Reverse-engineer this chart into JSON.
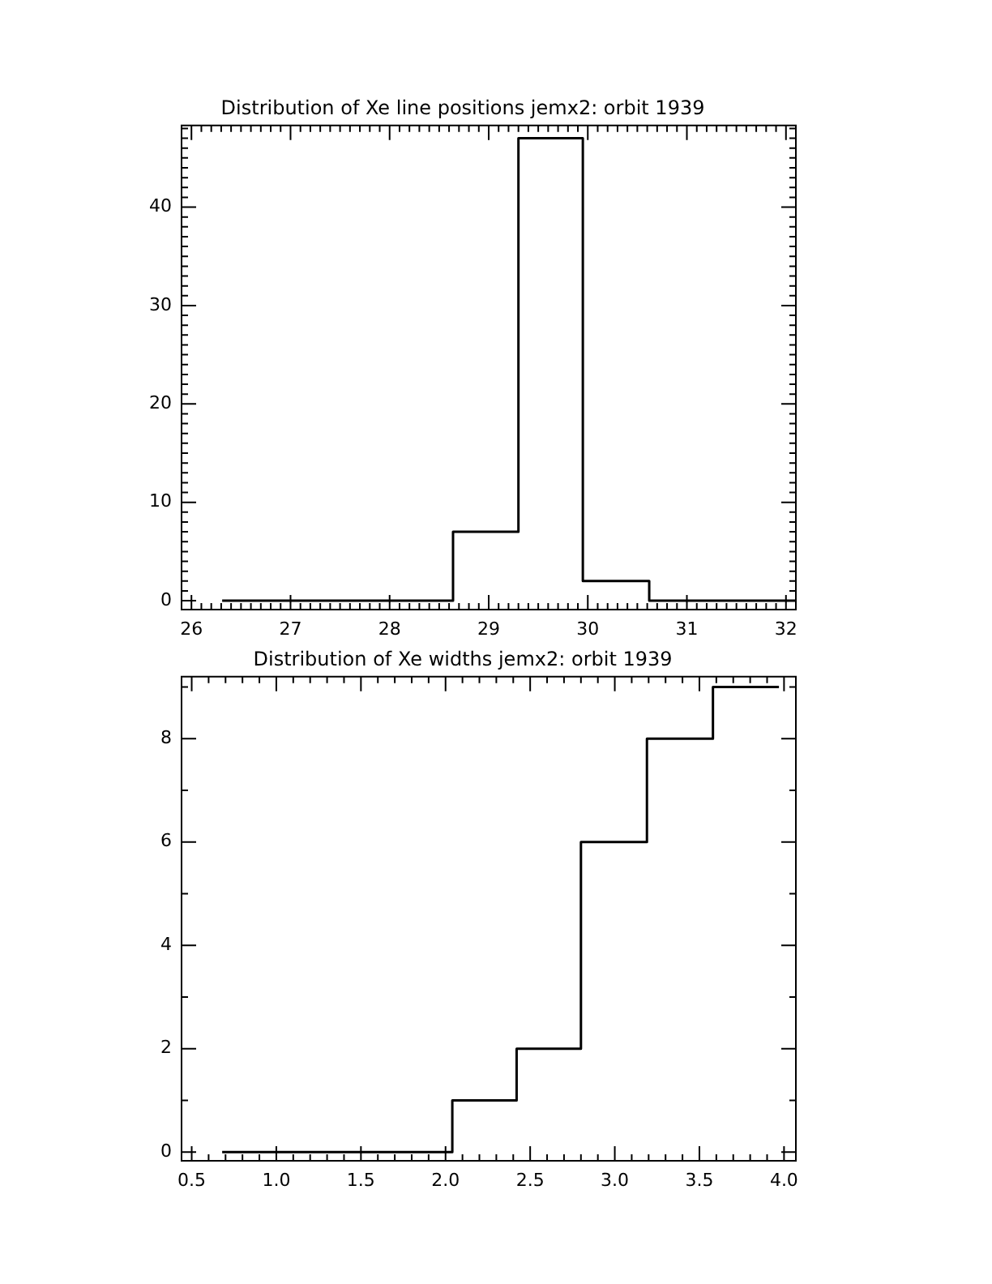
{
  "chart_data": [
    {
      "type": "histogram",
      "title": "Distribution of Xe line positions jemx2: orbit 1939",
      "grid": false,
      "color": "#000000",
      "bins": [
        26.31,
        28.64,
        29.3,
        29.95,
        30.62,
        32.1
      ],
      "values": [
        0,
        7,
        47,
        2,
        0
      ],
      "xlim": [
        25.9,
        32.1
      ],
      "ylim": [
        -0.9,
        48.3
      ],
      "xticks": [
        26,
        {
          "value": 26.1,
          "label": null
        },
        {
          "value": 26.2,
          "label": null
        },
        {
          "value": 26.3,
          "label": null
        },
        {
          "value": 26.4,
          "label": null
        },
        {
          "value": 26.5,
          "label": null
        },
        {
          "value": 26.6,
          "label": null
        },
        {
          "value": 26.7,
          "label": null
        },
        {
          "value": 26.8,
          "label": null
        },
        {
          "value": 26.9,
          "label": null
        },
        27,
        {
          "value": 27.1,
          "label": null
        },
        {
          "value": 27.2,
          "label": null
        },
        {
          "value": 27.3,
          "label": null
        },
        {
          "value": 27.4,
          "label": null
        },
        {
          "value": 27.5,
          "label": null
        },
        {
          "value": 27.6,
          "label": null
        },
        {
          "value": 27.7,
          "label": null
        },
        {
          "value": 27.8,
          "label": null
        },
        {
          "value": 27.9,
          "label": null
        },
        28,
        {
          "value": 28.1,
          "label": null
        },
        {
          "value": 28.2,
          "label": null
        },
        {
          "value": 28.3,
          "label": null
        },
        {
          "value": 28.4,
          "label": null
        },
        {
          "value": 28.5,
          "label": null
        },
        {
          "value": 28.6,
          "label": null
        },
        {
          "value": 28.7,
          "label": null
        },
        {
          "value": 28.8,
          "label": null
        },
        {
          "value": 28.9,
          "label": null
        },
        29,
        {
          "value": 29.1,
          "label": null
        },
        {
          "value": 29.2,
          "label": null
        },
        {
          "value": 29.3,
          "label": null
        },
        {
          "value": 29.4,
          "label": null
        },
        {
          "value": 29.5,
          "label": null
        },
        {
          "value": 29.6,
          "label": null
        },
        {
          "value": 29.7,
          "label": null
        },
        {
          "value": 29.8,
          "label": null
        },
        {
          "value": 29.9,
          "label": null
        },
        30,
        {
          "value": 30.1,
          "label": null
        },
        {
          "value": 30.2,
          "label": null
        },
        {
          "value": 30.3,
          "label": null
        },
        {
          "value": 30.4,
          "label": null
        },
        {
          "value": 30.5,
          "label": null
        },
        {
          "value": 30.6,
          "label": null
        },
        {
          "value": 30.7,
          "label": null
        },
        {
          "value": 30.8,
          "label": null
        },
        {
          "value": 30.9,
          "label": null
        },
        31,
        {
          "value": 31.1,
          "label": null
        },
        {
          "value": 31.2,
          "label": null
        },
        {
          "value": 31.3,
          "label": null
        },
        {
          "value": 31.4,
          "label": null
        },
        {
          "value": 31.5,
          "label": null
        },
        {
          "value": 31.6,
          "label": null
        },
        {
          "value": 31.7,
          "label": null
        },
        {
          "value": 31.8,
          "label": null
        },
        {
          "value": 31.9,
          "label": null
        },
        32
      ],
      "yticks": [
        0,
        {
          "value": 1,
          "label": null
        },
        {
          "value": 2,
          "label": null
        },
        {
          "value": 3,
          "label": null
        },
        {
          "value": 4,
          "label": null
        },
        {
          "value": 5,
          "label": null
        },
        {
          "value": 6,
          "label": null
        },
        {
          "value": 7,
          "label": null
        },
        {
          "value": 8,
          "label": null
        },
        {
          "value": 9,
          "label": null
        },
        10,
        {
          "value": 11,
          "label": null
        },
        {
          "value": 12,
          "label": null
        },
        {
          "value": 13,
          "label": null
        },
        {
          "value": 14,
          "label": null
        },
        {
          "value": 15,
          "label": null
        },
        {
          "value": 16,
          "label": null
        },
        {
          "value": 17,
          "label": null
        },
        {
          "value": 18,
          "label": null
        },
        {
          "value": 19,
          "label": null
        },
        20,
        {
          "value": 21,
          "label": null
        },
        {
          "value": 22,
          "label": null
        },
        {
          "value": 23,
          "label": null
        },
        {
          "value": 24,
          "label": null
        },
        {
          "value": 25,
          "label": null
        },
        {
          "value": 26,
          "label": null
        },
        {
          "value": 27,
          "label": null
        },
        {
          "value": 28,
          "label": null
        },
        {
          "value": 29,
          "label": null
        },
        30,
        {
          "value": 31,
          "label": null
        },
        {
          "value": 32,
          "label": null
        },
        {
          "value": 33,
          "label": null
        },
        {
          "value": 34,
          "label": null
        },
        {
          "value": 35,
          "label": null
        },
        {
          "value": 36,
          "label": null
        },
        {
          "value": 37,
          "label": null
        },
        {
          "value": 38,
          "label": null
        },
        {
          "value": 39,
          "label": null
        },
        40,
        {
          "value": 41,
          "label": null
        },
        {
          "value": 42,
          "label": null
        },
        {
          "value": 43,
          "label": null
        },
        {
          "value": 44,
          "label": null
        },
        {
          "value": 45,
          "label": null
        },
        {
          "value": 46,
          "label": null
        },
        {
          "value": 47,
          "label": null
        },
        {
          "value": 48,
          "label": null
        }
      ]
    },
    {
      "type": "histogram",
      "title": "Distribution of Xe widths jemx2: orbit 1939",
      "grid": false,
      "color": "#000000",
      "bins": [
        0.68,
        2.04,
        2.42,
        2.8,
        3.19,
        3.58,
        3.97
      ],
      "values": [
        0,
        1,
        2,
        6,
        8,
        9
      ],
      "xlim": [
        0.44,
        4.07
      ],
      "ylim": [
        -0.17,
        9.2
      ],
      "xticks": [
        0.5,
        {
          "value": 0.6,
          "label": null
        },
        {
          "value": 0.7,
          "label": null
        },
        {
          "value": 0.8,
          "label": null
        },
        {
          "value": 0.9,
          "label": null
        },
        {
          "value": 1,
          "label": "1.0"
        },
        {
          "value": 1.1,
          "label": null
        },
        {
          "value": 1.2,
          "label": null
        },
        {
          "value": 1.3,
          "label": null
        },
        {
          "value": 1.4,
          "label": null
        },
        1.5,
        {
          "value": 1.6,
          "label": null
        },
        {
          "value": 1.7,
          "label": null
        },
        {
          "value": 1.8,
          "label": null
        },
        {
          "value": 1.9,
          "label": null
        },
        {
          "value": 2,
          "label": "2.0"
        },
        {
          "value": 2.1,
          "label": null
        },
        {
          "value": 2.2,
          "label": null
        },
        {
          "value": 2.3,
          "label": null
        },
        {
          "value": 2.4,
          "label": null
        },
        2.5,
        {
          "value": 2.6,
          "label": null
        },
        {
          "value": 2.7,
          "label": null
        },
        {
          "value": 2.8,
          "label": null
        },
        {
          "value": 2.9,
          "label": null
        },
        {
          "value": 3,
          "label": "3.0"
        },
        {
          "value": 3.1,
          "label": null
        },
        {
          "value": 3.2,
          "label": null
        },
        {
          "value": 3.3,
          "label": null
        },
        {
          "value": 3.4,
          "label": null
        },
        3.5,
        {
          "value": 3.6,
          "label": null
        },
        {
          "value": 3.7,
          "label": null
        },
        {
          "value": 3.8,
          "label": null
        },
        {
          "value": 3.9,
          "label": null
        },
        {
          "value": 4,
          "label": "4.0"
        }
      ],
      "yticks": [
        0,
        {
          "value": 1,
          "label": null
        },
        2,
        {
          "value": 3,
          "label": null
        },
        4,
        {
          "value": 5,
          "label": null
        },
        6,
        {
          "value": 7,
          "label": null
        },
        8,
        {
          "value": 9,
          "label": null
        }
      ]
    }
  ]
}
